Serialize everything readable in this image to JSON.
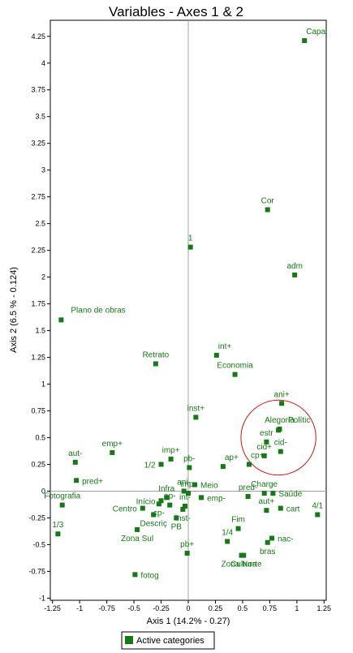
{
  "chart_data": {
    "type": "scatter",
    "title": "Variables - Axes 1 & 2",
    "xlabel": "Axis 1 (14.2% - 0.27)",
    "ylabel": "Axis 2 (6.5 % - 0.124)",
    "xlim": [
      -1.27,
      1.27
    ],
    "ylim": [
      -1.02,
      4.4
    ],
    "xticks": [
      {
        "value": -1.25,
        "label": "-1.25"
      },
      {
        "value": -1,
        "label": "-1"
      },
      {
        "value": -0.75,
        "label": "-0.75"
      },
      {
        "value": -0.5,
        "label": "-0.5"
      },
      {
        "value": -0.25,
        "label": "-0.25"
      },
      {
        "value": 0,
        "label": "0"
      },
      {
        "value": 0.25,
        "label": "0.25"
      },
      {
        "value": 0.5,
        "label": "0.5"
      },
      {
        "value": 0.75,
        "label": "0.75"
      },
      {
        "value": 1,
        "label": "1"
      },
      {
        "value": 1.25,
        "label": "1.25"
      }
    ],
    "yticks": [
      {
        "value": -1,
        "label": "-1"
      },
      {
        "value": -0.75,
        "label": "-0.75"
      },
      {
        "value": -0.5,
        "label": "-0.5"
      },
      {
        "value": -0.25,
        "label": "-0.25"
      },
      {
        "value": 0,
        "label": "0"
      },
      {
        "value": 0.25,
        "label": "0.25"
      },
      {
        "value": 0.5,
        "label": "0.5"
      },
      {
        "value": 0.75,
        "label": "0.75"
      },
      {
        "value": 1,
        "label": "1"
      },
      {
        "value": 1.25,
        "label": "1.25"
      },
      {
        "value": 1.5,
        "label": "1.5"
      },
      {
        "value": 1.75,
        "label": "1.75"
      },
      {
        "value": 2,
        "label": "2"
      },
      {
        "value": 2.25,
        "label": "2.25"
      },
      {
        "value": 2.5,
        "label": "2.5"
      },
      {
        "value": 2.75,
        "label": "2.75"
      },
      {
        "value": 3,
        "label": "3"
      },
      {
        "value": 3.25,
        "label": "3.25"
      },
      {
        "value": 3.5,
        "label": "3.5"
      },
      {
        "value": 3.75,
        "label": "3.75"
      },
      {
        "value": 4,
        "label": "4"
      },
      {
        "value": 4.25,
        "label": "4.25"
      }
    ],
    "grid": false,
    "legend": {
      "position": "bottom-center",
      "entries": [
        "Active categories"
      ]
    },
    "colors": {
      "points": "#137b13",
      "labels": "#137b13",
      "axes": "#000000",
      "zero_lines": "#a0a0a0",
      "annotation": "#dd1111"
    },
    "annotation": {
      "shape": "circle",
      "center": [
        0.83,
        0.5
      ],
      "radius_x": 0.345
    },
    "series": [
      {
        "name": "Active categories",
        "points": [
          {
            "label": "Capa",
            "x": 1.07,
            "y": 4.21,
            "anchor": "ne"
          },
          {
            "label": "Cor",
            "x": 0.73,
            "y": 2.63,
            "anchor": "n"
          },
          {
            "label": "1",
            "x": 0.02,
            "y": 2.28,
            "anchor": "n"
          },
          {
            "label": "adm",
            "x": 0.98,
            "y": 2.02,
            "anchor": "n"
          },
          {
            "label": "Plano de obras",
            "x": -1.17,
            "y": 1.6,
            "anchor": "ene"
          },
          {
            "label": "Retrato",
            "x": -0.3,
            "y": 1.19,
            "anchor": "n"
          },
          {
            "label": "int+",
            "x": 0.26,
            "y": 1.27,
            "anchor": "ne"
          },
          {
            "label": "Economia",
            "x": 0.43,
            "y": 1.09,
            "anchor": "n"
          },
          {
            "label": "ani+",
            "x": 0.86,
            "y": 0.82,
            "anchor": "n"
          },
          {
            "label": "inst+",
            "x": 0.07,
            "y": 0.69,
            "anchor": "n"
          },
          {
            "label": "Alegoria",
            "x": 0.84,
            "y": 0.58,
            "anchor": "n"
          },
          {
            "label": "Polític",
            "x": 0.83,
            "y": 0.57,
            "anchor": "ene"
          },
          {
            "label": "estr",
            "x": 0.72,
            "y": 0.46,
            "anchor": "n"
          },
          {
            "label": "cid+",
            "x": 0.7,
            "y": 0.33,
            "anchor": "n"
          },
          {
            "label": "cid-",
            "x": 0.85,
            "y": 0.37,
            "anchor": "n"
          },
          {
            "label": "cp+",
            "x": 0.56,
            "y": 0.25,
            "anchor": "ne"
          },
          {
            "label": "ap+",
            "x": 0.32,
            "y": 0.23,
            "anchor": "ne"
          },
          {
            "label": "emp+",
            "x": -0.7,
            "y": 0.36,
            "anchor": "n"
          },
          {
            "label": "imp+",
            "x": -0.16,
            "y": 0.3,
            "anchor": "n"
          },
          {
            "label": "aut-",
            "x": -1.04,
            "y": 0.27,
            "anchor": "n"
          },
          {
            "label": "1/2",
            "x": -0.25,
            "y": 0.25,
            "anchor": "w"
          },
          {
            "label": "pb-",
            "x": 0.01,
            "y": 0.22,
            "anchor": "n"
          },
          {
            "label": "pred+",
            "x": -1.03,
            "y": 0.1,
            "anchor": "e"
          },
          {
            "label": "ani-",
            "x": -0.04,
            "y": 0.0,
            "anchor": "n"
          },
          {
            "label": "Meio",
            "x": 0.06,
            "y": 0.06,
            "anchor": "e"
          },
          {
            "label": "Infra",
            "x": -0.2,
            "y": -0.06,
            "anchor": "n"
          },
          {
            "label": "imp-",
            "x": 0.0,
            "y": -0.02,
            "anchor": "n"
          },
          {
            "label": "emp-",
            "x": 0.12,
            "y": -0.06,
            "anchor": "e"
          },
          {
            "label": "pred-",
            "x": 0.55,
            "y": -0.05,
            "anchor": "n"
          },
          {
            "label": "Saúde",
            "x": 0.78,
            "y": -0.02,
            "anchor": "e"
          },
          {
            "label": "Charge",
            "x": 0.7,
            "y": -0.02,
            "anchor": "n"
          },
          {
            "label": "Fotografia",
            "x": -1.16,
            "y": -0.13,
            "anchor": "n"
          },
          {
            "label": "Início",
            "x": -0.25,
            "y": -0.09,
            "anchor": "w"
          },
          {
            "label": "ap-",
            "x": -0.17,
            "y": -0.13,
            "anchor": "n"
          },
          {
            "label": "int-",
            "x": -0.03,
            "y": -0.14,
            "anchor": "n"
          },
          {
            "label": "Centro",
            "x": -0.42,
            "y": -0.16,
            "anchor": "w"
          },
          {
            "label": "cp-",
            "x": -0.27,
            "y": -0.12,
            "anchor": "s"
          },
          {
            "label": "inst-",
            "x": -0.05,
            "y": -0.17,
            "anchor": "s"
          },
          {
            "label": "aut+",
            "x": 0.72,
            "y": -0.18,
            "anchor": "n"
          },
          {
            "label": "cart",
            "x": 0.85,
            "y": -0.16,
            "anchor": "e"
          },
          {
            "label": "4/1",
            "x": 1.19,
            "y": -0.22,
            "anchor": "n"
          },
          {
            "label": "Descriç",
            "x": -0.32,
            "y": -0.22,
            "anchor": "s"
          },
          {
            "label": "PB",
            "x": -0.11,
            "y": -0.25,
            "anchor": "s"
          },
          {
            "label": "1/3",
            "x": -1.2,
            "y": -0.4,
            "anchor": "n"
          },
          {
            "label": "Fim",
            "x": 0.46,
            "y": -0.35,
            "anchor": "n"
          },
          {
            "label": "Zona Sul",
            "x": -0.47,
            "y": -0.36,
            "anchor": "s"
          },
          {
            "label": "1/4",
            "x": 0.36,
            "y": -0.47,
            "anchor": "n"
          },
          {
            "label": "nac-",
            "x": 0.77,
            "y": -0.44,
            "anchor": "e"
          },
          {
            "label": "bras",
            "x": 0.73,
            "y": -0.48,
            "anchor": "s"
          },
          {
            "label": "pb+",
            "x": -0.01,
            "y": -0.58,
            "anchor": "n"
          },
          {
            "label": "Cultura",
            "x": 0.51,
            "y": -0.6,
            "anchor": "s"
          },
          {
            "label": "Zona Norte",
            "x": 0.49,
            "y": -0.6,
            "anchor": "s"
          },
          {
            "label": "fotog",
            "x": -0.49,
            "y": -0.78,
            "anchor": "e"
          }
        ]
      }
    ]
  }
}
